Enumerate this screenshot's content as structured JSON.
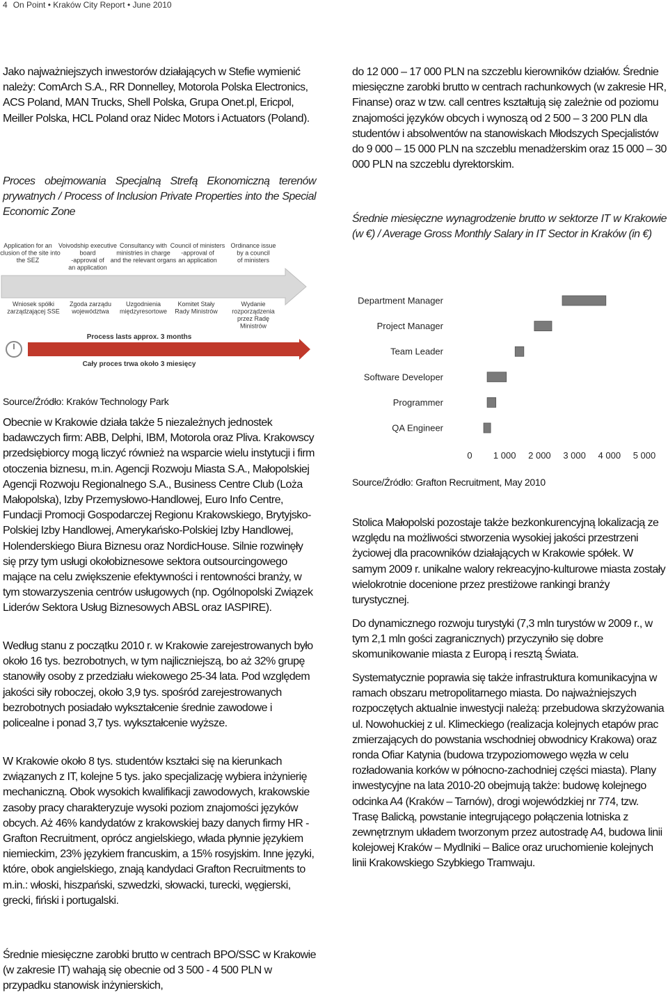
{
  "header": {
    "page_number": "4",
    "title": "On Point • Kraków City Report • June 2010"
  },
  "left": {
    "p1": "Jako najważniejszych inwestorów działających w Stefie wymienić należy: ComArch S.A., RR Donnelley, Motorola Polska Electronics, ACS Poland, MAN Trucks, Shell Polska, Grupa Onet.pl, Ericpol, Meiller Polska, HCL Poland oraz Nidec Motors i Actuators (Poland).",
    "caption": "Proces obejmowania Specjalną Strefą Ekonomiczną terenów prywatnych / Process of Inclusion Private Properties into the Special Economic Zone",
    "source": "Source/Źródło: Kraków Technology Park",
    "p2": "Obecnie w Krakowie działa także 5 niezależnych jednostek badawczych firm: ABB, Delphi, IBM, Motorola oraz Pliva. Krakowscy przedsiębiorcy mogą liczyć również na wsparcie wielu instytucji i firm otoczenia biznesu, m.in. Agencji Rozwoju Miasta S.A., Małopolskiej Agencji Rozwoju Regionalnego S.A., Business Centre Club (Loża Małopolska), Izby Przemysłowo-Handlowej, Euro Info Centre, Fundacji Promocji Gospodarczej Regionu Krakowskiego, Brytyjsko-Polskiej Izby Handlowej, Amerykańsko-Polskiej Izby Handlowej, Holenderskiego Biura Biznesu oraz NordicHouse. Silnie rozwinęły się przy tym usługi okołobiznesowe sektora outsourcingowego mające na celu zwiększenie efektywności i rentowności branży, w tym stowarzyszenia centrów usługowych (np. Ogólnopolski Związek Liderów Sektora Usług Biznesowych ABSL oraz IASPIRE).",
    "p3": "Według stanu z początku 2010 r. w Krakowie zarejestrowanych było około 16 tys. bezrobotnych, w tym najliczniejszą, bo aż 32% grupę stanowiły osoby z przedziału wiekowego 25-34 lata. Pod względem jakości siły roboczej, około 3,9 tys. spośród zarejestrowanych bezrobotnych posiadało wykształcenie średnie zawodowe i policealne i ponad 3,7 tys. wykształcenie wyższe.",
    "p4": "W Krakowie około 8 tys. studentów kształci się na kierunkach związanych z IT, kolejne 5 tys. jako specjalizację wybiera inżynierię mechaniczną. Obok wysokich kwalifikacji zawodowych, krakowskie zasoby pracy charakteryzuje wysoki poziom znajomości języków obcych. Aż 46% kandydatów z krakowskiej bazy danych firmy HR - Grafton Recruitment, oprócz angielskiego, włada płynnie językiem niemieckim, 23% językiem francuskim, a 15% rosyjskim. Inne języki, które, obok angielskiego, znają kandydaci Grafton Recruitments to m.in.: włoski, hiszpański, szwedzki, słowacki, turecki, węgierski, grecki, fiński i portugalski.",
    "p5": "Średnie miesięczne zarobki brutto w centrach BPO/SSC w Krakowie (w zakresie IT) wahają się obecnie od 3 500 - 4 500 PLN w przypadku stanowisk inżynierskich,"
  },
  "diagram": {
    "steps_en": [
      [
        "Application for an",
        "inclusion of the site into",
        "the SEZ"
      ],
      [
        "Voivodship executive",
        "board",
        "-approval of",
        "an application"
      ],
      [
        "Consultancy with",
        "ministries in charge",
        "and the relevant organs"
      ],
      [
        "Council of ministers",
        "-approval of",
        "an application"
      ],
      [
        "Ordinance issue",
        "by a council",
        "of ministers"
      ]
    ],
    "steps_pl": [
      [
        "Wniosek spółki",
        "zarządzającej SSE"
      ],
      [
        "Zgoda zarządu",
        "województwa"
      ],
      [
        "Uzgodnienia",
        "międzyresortowe"
      ],
      [
        "Komitet Stały",
        "Rady Ministrów"
      ],
      [
        "Wydanie",
        "rozporządzenia",
        "przez Radę",
        "Ministrów"
      ]
    ],
    "duration_en": "Process lasts approx. 3 months",
    "duration_pl": "Cały proces trwa około 3 miesięcy"
  },
  "right": {
    "p1": "do 12 000 – 17 000 PLN na szczeblu kierowników działów. Średnie miesięczne zarobki brutto w centrach rachunkowych (w zakresie HR, Finanse) oraz w tzw. call centres kształtują się zależnie od poziomu znajomości języków obcych i wynoszą od 2 500 – 3 200 PLN dla studentów i absolwentów na stanowiskach Młodszych Specjalistów do 9 000 – 15 000 PLN na szczeblu menadżerskim oraz 15 000 – 30 000 PLN na szczeblu dyrektorskim.",
    "caption": "Średnie miesięczne wynagrodzenie brutto w sektorze IT w Krakowie (w €) / Average Gross Monthly Salary in IT Sector in Kraków (in €)",
    "source": "Source/Źródło: Grafton Recruitment, May 2010",
    "p2": "Stolica Małopolski pozostaje także bezkonkurencyjną lokalizacją ze względu na możliwości stworzenia wysokiej jakości przestrzeni życiowej dla pracowników działających w Krakowie spółek. W samym 2009 r. unikalne walory rekreacyjno-kulturowe miasta zostały wielokrotnie docenione przez prestiżowe rankingi branży turystycznej.",
    "p3": "Do dynamicznego rozwoju turystyki (7,3 mln turystów w 2009 r., w tym 2,1 mln gości zagranicznych) przyczyniło się dobre skomunikowanie miasta z Europą i resztą Świata.",
    "p4": "Systematycznie poprawia się także infrastruktura komunikacyjna w ramach obszaru metropolitarnego miasta. Do najważniejszych rozpoczętych aktualnie inwestycji należą: przebudowa skrzyżowania ul. Nowohuckiej z ul. Klimeckiego (realizacja kolejnych etapów prac zmierzających do powstania wschodniej obwodnicy Krakowa) oraz ronda Ofiar Katynia (budowa trzypoziomowego węzła w celu rozładowania korków w północno-zachodniej części miasta). Plany inwestycyjne na lata 2010-20 obejmują także: budowę kolejnego odcinka A4 (Kraków – Tarnów), drogi wojewódzkiej nr 774, tzw. Trasę Balicką, powstanie integrującego połączenia lotniska z zewnętrznym układem tworzonym przez autostradę A4, budowa linii kolejowej Kraków – Mydlniki – Balice oraz uruchomienie kolejnych linii Krakowskiego Szybkiego Tramwaju."
  },
  "chart_data": {
    "type": "floating-bar",
    "categories": [
      "Department Manager",
      "Project Manager",
      "Team Leader",
      "Software Developer",
      "Programmer",
      "QA Engineer"
    ],
    "low": [
      2650,
      1850,
      1300,
      500,
      500,
      400
    ],
    "high": [
      3900,
      2350,
      1550,
      1050,
      750,
      600
    ],
    "color": "#7a7a7a",
    "xlim": [
      0,
      5000
    ],
    "xticks": [
      0,
      {
        "value": 1000,
        "label": "1 000"
      },
      {
        "value": 2000,
        "label": "2 000"
      },
      {
        "value": 3000,
        "label": "3 000"
      },
      {
        "value": 4000,
        "label": "4 000"
      },
      {
        "value": 5000,
        "label": "5 000"
      }
    ]
  }
}
